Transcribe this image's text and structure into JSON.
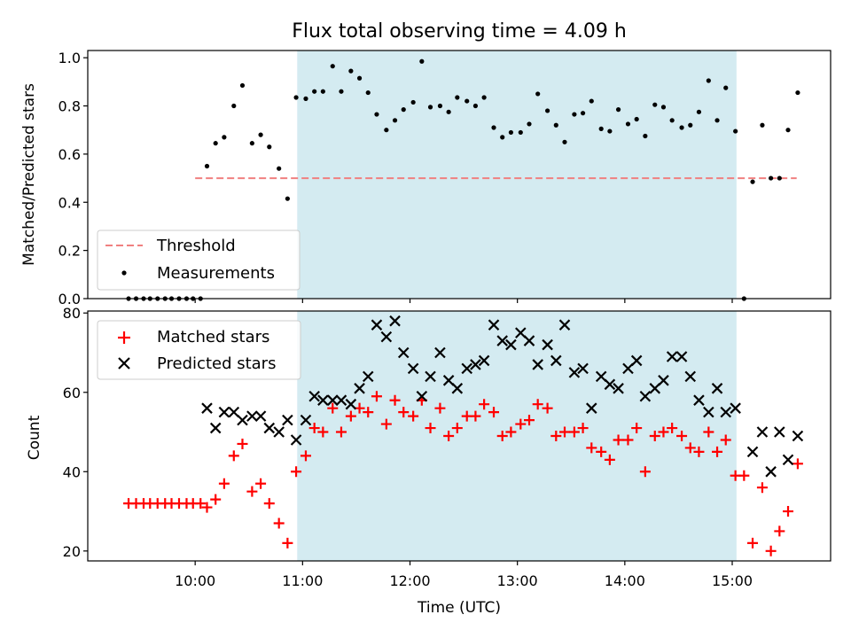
{
  "chart_data": [
    {
      "type": "scatter",
      "title": "Flux total observing time = 4.09 h",
      "xlabel": "",
      "ylabel": "Matched/Predicted stars",
      "ylim": [
        0,
        1.03
      ],
      "yticks": [
        "0.0",
        "0.2",
        "0.4",
        "0.6",
        "0.8",
        "1.0"
      ],
      "xlim_hours": [
        9.0,
        15.916
      ],
      "xticks_hours": [
        10,
        11,
        12,
        13,
        14,
        15
      ],
      "shaded_window_hours": [
        10.95,
        15.04
      ],
      "shade_color": "#d4ebf1",
      "legend_position": "lower-left",
      "threshold": {
        "name": "Threshold",
        "value": 0.5,
        "x_start_hours": 10.0,
        "x_end_hours": 15.6,
        "color": "#f08080"
      },
      "series": [
        {
          "name": "Measurements",
          "color": "#000000",
          "points": [
            [
              9.38,
              0.0
            ],
            [
              9.45,
              0.0
            ],
            [
              9.52,
              0.0
            ],
            [
              9.58,
              0.0
            ],
            [
              9.65,
              0.0
            ],
            [
              9.72,
              0.0
            ],
            [
              9.78,
              0.0
            ],
            [
              9.85,
              0.0
            ],
            [
              9.92,
              0.0
            ],
            [
              9.98,
              0.0
            ],
            [
              10.05,
              0.0
            ],
            [
              10.11,
              0.55
            ],
            [
              10.19,
              0.645
            ],
            [
              10.27,
              0.67
            ],
            [
              10.36,
              0.8
            ],
            [
              10.44,
              0.885
            ],
            [
              10.53,
              0.645
            ],
            [
              10.61,
              0.68
            ],
            [
              10.69,
              0.63
            ],
            [
              10.78,
              0.54
            ],
            [
              10.86,
              0.415
            ],
            [
              10.94,
              0.835
            ],
            [
              11.03,
              0.83
            ],
            [
              11.11,
              0.86
            ],
            [
              11.19,
              0.86
            ],
            [
              11.28,
              0.965
            ],
            [
              11.36,
              0.86
            ],
            [
              11.45,
              0.945
            ],
            [
              11.53,
              0.915
            ],
            [
              11.61,
              0.855
            ],
            [
              11.69,
              0.765
            ],
            [
              11.78,
              0.7
            ],
            [
              11.86,
              0.74
            ],
            [
              11.94,
              0.785
            ],
            [
              12.03,
              0.815
            ],
            [
              12.11,
              0.985
            ],
            [
              12.19,
              0.795
            ],
            [
              12.28,
              0.8
            ],
            [
              12.36,
              0.775
            ],
            [
              12.44,
              0.835
            ],
            [
              12.53,
              0.82
            ],
            [
              12.61,
              0.8
            ],
            [
              12.69,
              0.835
            ],
            [
              12.78,
              0.71
            ],
            [
              12.86,
              0.67
            ],
            [
              12.94,
              0.69
            ],
            [
              13.03,
              0.69
            ],
            [
              13.11,
              0.725
            ],
            [
              13.19,
              0.85
            ],
            [
              13.28,
              0.78
            ],
            [
              13.36,
              0.72
            ],
            [
              13.44,
              0.65
            ],
            [
              13.53,
              0.765
            ],
            [
              13.61,
              0.77
            ],
            [
              13.69,
              0.82
            ],
            [
              13.78,
              0.705
            ],
            [
              13.86,
              0.695
            ],
            [
              13.94,
              0.785
            ],
            [
              14.03,
              0.725
            ],
            [
              14.11,
              0.745
            ],
            [
              14.19,
              0.675
            ],
            [
              14.28,
              0.805
            ],
            [
              14.36,
              0.795
            ],
            [
              14.44,
              0.74
            ],
            [
              14.53,
              0.71
            ],
            [
              14.61,
              0.72
            ],
            [
              14.69,
              0.775
            ],
            [
              14.78,
              0.905
            ],
            [
              14.86,
              0.74
            ],
            [
              14.94,
              0.875
            ],
            [
              15.03,
              0.695
            ],
            [
              15.11,
              0.0
            ],
            [
              15.19,
              0.485
            ],
            [
              15.28,
              0.72
            ],
            [
              15.36,
              0.5
            ],
            [
              15.44,
              0.5
            ],
            [
              15.52,
              0.7
            ],
            [
              15.61,
              0.855
            ]
          ]
        }
      ]
    },
    {
      "type": "scatter",
      "title": "",
      "xlabel": "Time (UTC)",
      "ylabel": "Count",
      "ylim": [
        17.5,
        80.5
      ],
      "yticks": [
        "20",
        "40",
        "60",
        "80"
      ],
      "xlim_hours": [
        9.0,
        15.916
      ],
      "xticks_hours": [
        10,
        11,
        12,
        13,
        14,
        15
      ],
      "xtick_labels": [
        "10:00",
        "11:00",
        "12:00",
        "13:00",
        "14:00",
        "15:00"
      ],
      "shaded_window_hours": [
        10.95,
        15.04
      ],
      "legend_position": "upper-left",
      "series": [
        {
          "name": "Matched stars",
          "color": "#ff0000",
          "marker": "plus",
          "points": [
            [
              9.38,
              32
            ],
            [
              9.45,
              32
            ],
            [
              9.52,
              32
            ],
            [
              9.58,
              32
            ],
            [
              9.65,
              32
            ],
            [
              9.72,
              32
            ],
            [
              9.78,
              32
            ],
            [
              9.85,
              32
            ],
            [
              9.92,
              32
            ],
            [
              9.98,
              32
            ],
            [
              10.05,
              32
            ],
            [
              10.11,
              31
            ],
            [
              10.19,
              33
            ],
            [
              10.27,
              37
            ],
            [
              10.36,
              44
            ],
            [
              10.44,
              47
            ],
            [
              10.53,
              35
            ],
            [
              10.61,
              37
            ],
            [
              10.69,
              32
            ],
            [
              10.78,
              27
            ],
            [
              10.86,
              22
            ],
            [
              10.94,
              40
            ],
            [
              11.03,
              44
            ],
            [
              11.11,
              51
            ],
            [
              11.19,
              50
            ],
            [
              11.28,
              56
            ],
            [
              11.36,
              50
            ],
            [
              11.45,
              54
            ],
            [
              11.53,
              56
            ],
            [
              11.61,
              55
            ],
            [
              11.69,
              59
            ],
            [
              11.78,
              52
            ],
            [
              11.86,
              58
            ],
            [
              11.94,
              55
            ],
            [
              12.03,
              54
            ],
            [
              12.11,
              58
            ],
            [
              12.19,
              51
            ],
            [
              12.28,
              56
            ],
            [
              12.36,
              49
            ],
            [
              12.44,
              51
            ],
            [
              12.53,
              54
            ],
            [
              12.61,
              54
            ],
            [
              12.69,
              57
            ],
            [
              12.78,
              55
            ],
            [
              12.86,
              49
            ],
            [
              12.94,
              50
            ],
            [
              13.03,
              52
            ],
            [
              13.11,
              53
            ],
            [
              13.19,
              57
            ],
            [
              13.28,
              56
            ],
            [
              13.36,
              49
            ],
            [
              13.44,
              50
            ],
            [
              13.53,
              50
            ],
            [
              13.61,
              51
            ],
            [
              13.69,
              46
            ],
            [
              13.78,
              45
            ],
            [
              13.86,
              43
            ],
            [
              13.94,
              48
            ],
            [
              14.03,
              48
            ],
            [
              14.11,
              51
            ],
            [
              14.19,
              40
            ],
            [
              14.28,
              49
            ],
            [
              14.36,
              50
            ],
            [
              14.44,
              51
            ],
            [
              14.53,
              49
            ],
            [
              14.61,
              46
            ],
            [
              14.69,
              45
            ],
            [
              14.78,
              50
            ],
            [
              14.86,
              45
            ],
            [
              14.94,
              48
            ],
            [
              15.03,
              39
            ],
            [
              15.11,
              39
            ],
            [
              15.19,
              22
            ],
            [
              15.28,
              36
            ],
            [
              15.36,
              20
            ],
            [
              15.44,
              25
            ],
            [
              15.52,
              30
            ],
            [
              15.61,
              42
            ]
          ]
        },
        {
          "name": "Predicted stars",
          "color": "#000000",
          "marker": "cross",
          "points": [
            [
              10.11,
              56
            ],
            [
              10.19,
              51
            ],
            [
              10.27,
              55
            ],
            [
              10.36,
              55
            ],
            [
              10.44,
              53
            ],
            [
              10.53,
              54
            ],
            [
              10.61,
              54
            ],
            [
              10.69,
              51
            ],
            [
              10.78,
              50
            ],
            [
              10.86,
              53
            ],
            [
              10.94,
              48
            ],
            [
              11.03,
              53
            ],
            [
              11.11,
              59
            ],
            [
              11.19,
              58
            ],
            [
              11.28,
              58
            ],
            [
              11.36,
              58
            ],
            [
              11.45,
              57
            ],
            [
              11.53,
              61
            ],
            [
              11.61,
              64
            ],
            [
              11.69,
              77
            ],
            [
              11.78,
              74
            ],
            [
              11.86,
              78
            ],
            [
              11.94,
              70
            ],
            [
              12.03,
              66
            ],
            [
              12.11,
              59
            ],
            [
              12.19,
              64
            ],
            [
              12.28,
              70
            ],
            [
              12.36,
              63
            ],
            [
              12.44,
              61
            ],
            [
              12.53,
              66
            ],
            [
              12.61,
              67
            ],
            [
              12.69,
              68
            ],
            [
              12.78,
              77
            ],
            [
              12.86,
              73
            ],
            [
              12.94,
              72
            ],
            [
              13.03,
              75
            ],
            [
              13.11,
              73
            ],
            [
              13.19,
              67
            ],
            [
              13.28,
              72
            ],
            [
              13.36,
              68
            ],
            [
              13.44,
              77
            ],
            [
              13.53,
              65
            ],
            [
              13.61,
              66
            ],
            [
              13.69,
              56
            ],
            [
              13.78,
              64
            ],
            [
              13.86,
              62
            ],
            [
              13.94,
              61
            ],
            [
              14.03,
              66
            ],
            [
              14.11,
              68
            ],
            [
              14.19,
              59
            ],
            [
              14.28,
              61
            ],
            [
              14.36,
              63
            ],
            [
              14.44,
              69
            ],
            [
              14.53,
              69
            ],
            [
              14.61,
              64
            ],
            [
              14.69,
              58
            ],
            [
              14.78,
              55
            ],
            [
              14.86,
              61
            ],
            [
              14.94,
              55
            ],
            [
              15.03,
              56
            ],
            [
              15.19,
              45
            ],
            [
              15.28,
              50
            ],
            [
              15.36,
              40
            ],
            [
              15.44,
              50
            ],
            [
              15.52,
              43
            ],
            [
              15.61,
              49
            ]
          ]
        }
      ]
    }
  ]
}
